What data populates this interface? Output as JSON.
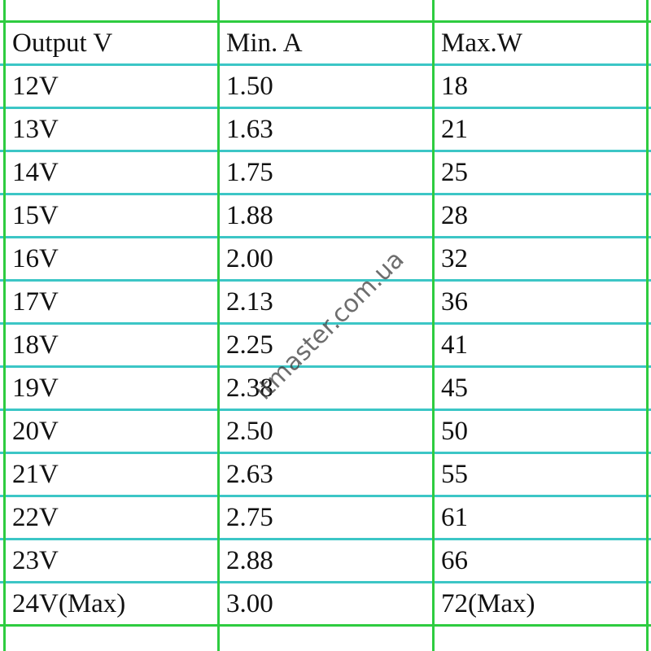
{
  "table": {
    "header": [
      "Output V",
      "Min. A",
      "Max.W"
    ],
    "rows": [
      [
        "12V",
        "1.50",
        "18"
      ],
      [
        "13V",
        "1.63",
        "21"
      ],
      [
        "14V",
        "1.75",
        "25"
      ],
      [
        "15V",
        "1.88",
        "28"
      ],
      [
        "16V",
        "2.00",
        "32"
      ],
      [
        "17V",
        "2.13",
        "36"
      ],
      [
        "18V",
        "2.25",
        "41"
      ],
      [
        "19V",
        "2.38",
        "45"
      ],
      [
        "20V",
        "2.50",
        "50"
      ],
      [
        "21V",
        "2.63",
        "55"
      ],
      [
        "22V",
        "2.75",
        "61"
      ],
      [
        "23V",
        "2.88",
        "66"
      ],
      [
        "24V(Max)",
        "3.00",
        "72(Max)"
      ]
    ]
  },
  "watermark": "itmaster.com.ua"
}
